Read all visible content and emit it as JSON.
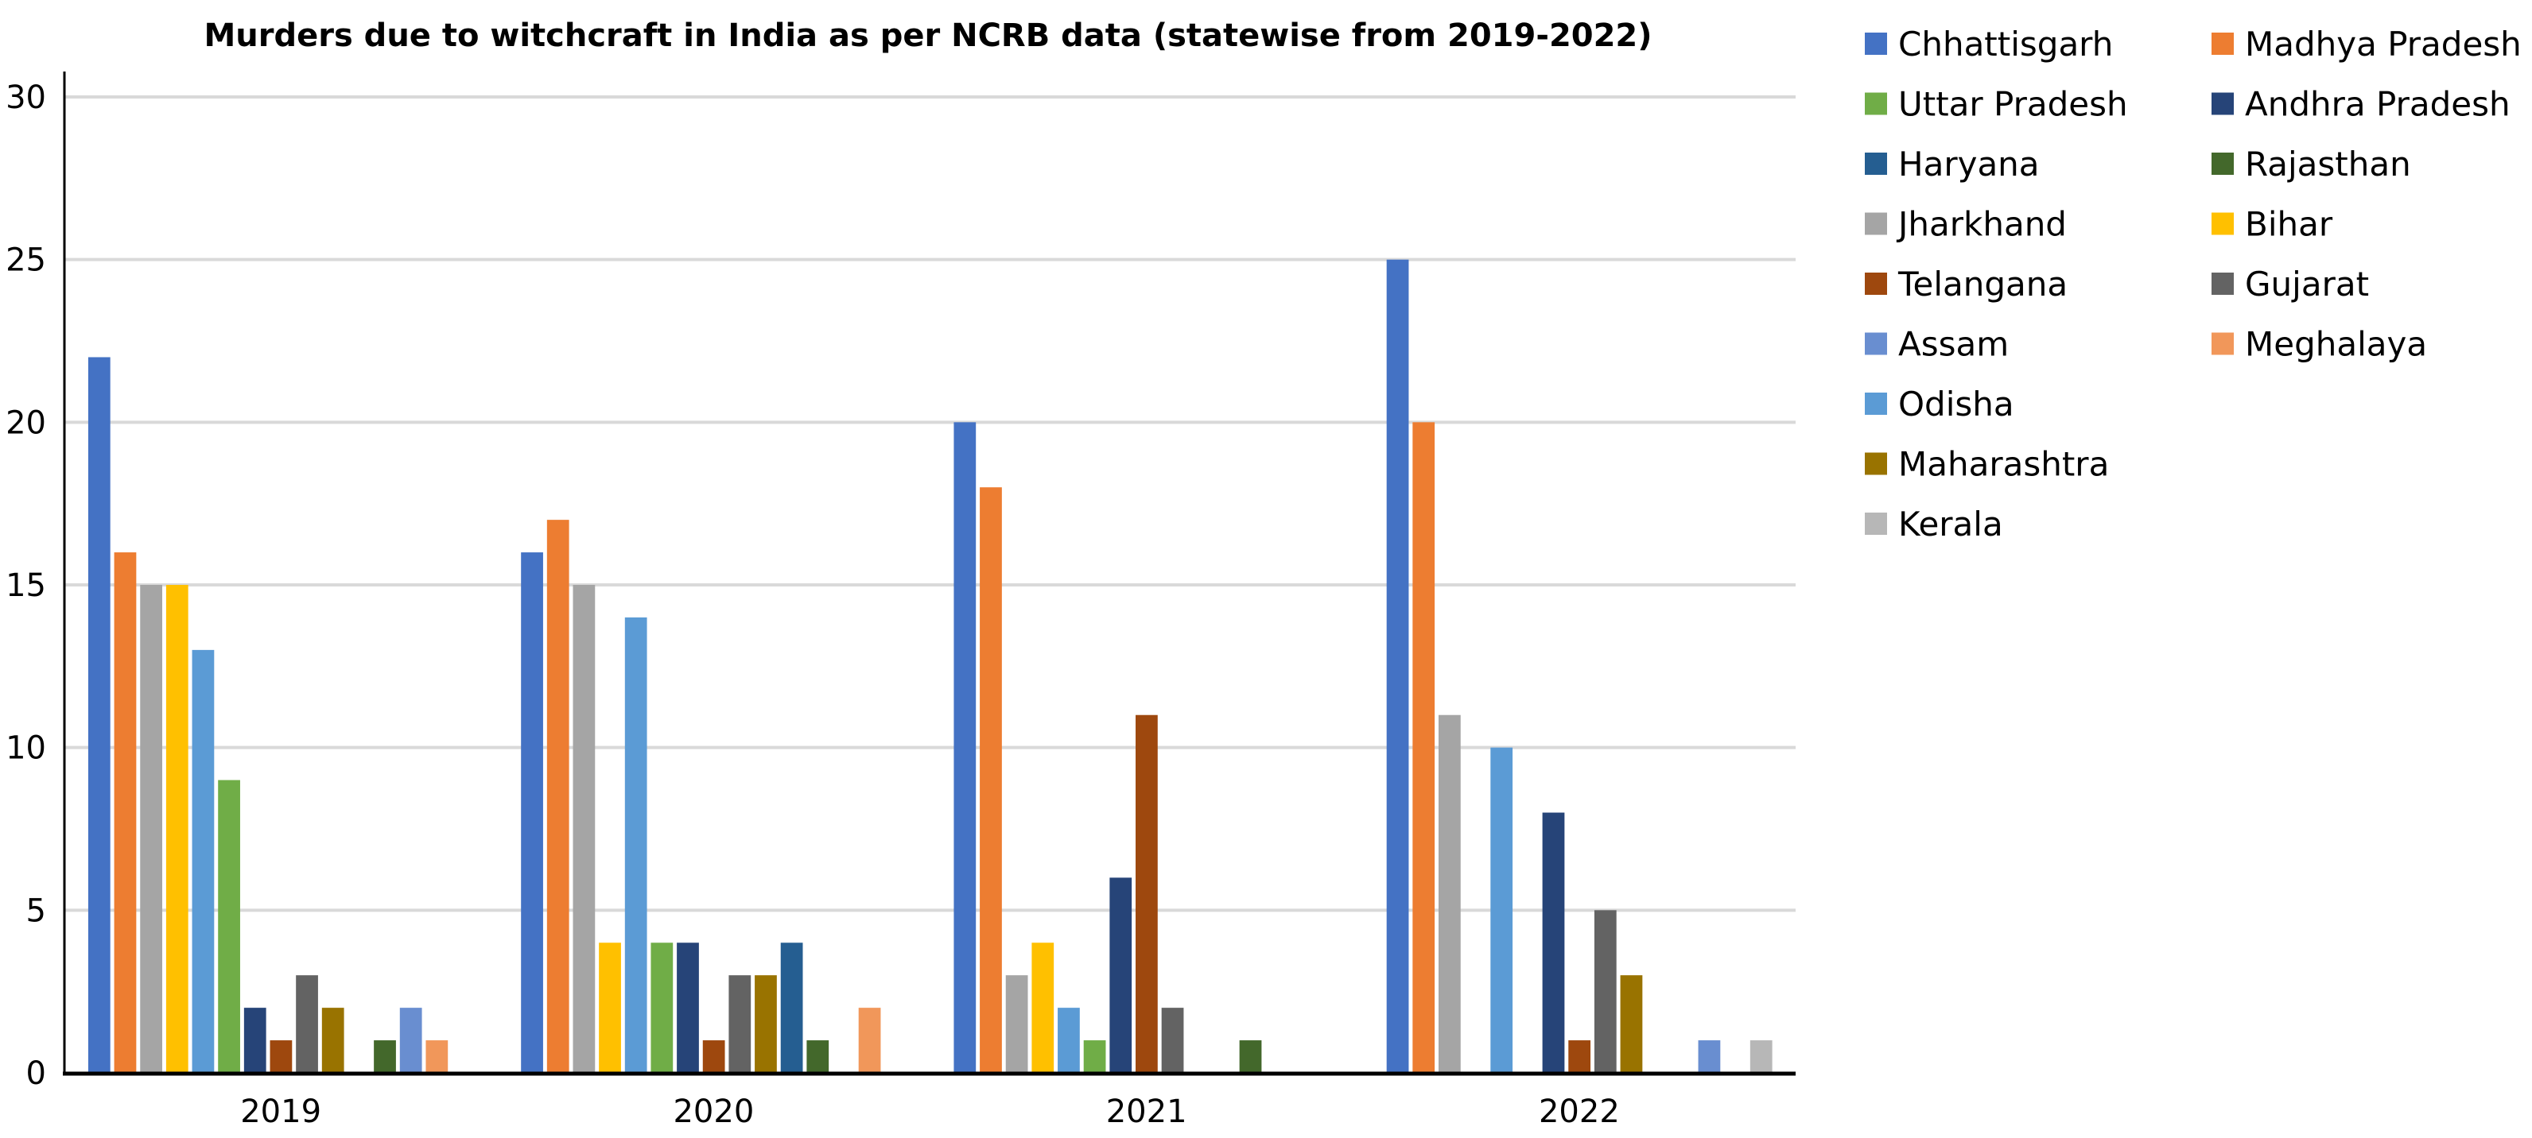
{
  "chart_data": {
    "type": "bar",
    "title": "Murders due to witchcraft in India as per NCRB data (statewise from 2019-2022)",
    "xlabel": "",
    "ylabel": "",
    "ylim": [
      0,
      30
    ],
    "yticks": [
      0,
      5,
      10,
      15,
      20,
      25,
      30
    ],
    "grid": true,
    "legend_placement": "right",
    "categories": [
      "2019",
      "2020",
      "2021",
      "2022"
    ],
    "series": [
      {
        "name": "Chhattisgarh",
        "color": "#4472C4",
        "values": [
          22,
          16,
          20,
          25
        ]
      },
      {
        "name": "Madhya Pradesh",
        "color": "#ED7D31",
        "values": [
          16,
          17,
          18,
          20
        ]
      },
      {
        "name": "Jharkhand",
        "color": "#A5A5A5",
        "values": [
          15,
          15,
          3,
          11
        ]
      },
      {
        "name": "Bihar",
        "color": "#FFC000",
        "values": [
          15,
          4,
          4,
          0
        ]
      },
      {
        "name": "Odisha",
        "color": "#5B9BD5",
        "values": [
          13,
          14,
          2,
          10
        ]
      },
      {
        "name": "Uttar Pradesh",
        "color": "#70AD47",
        "values": [
          9,
          4,
          1,
          0
        ]
      },
      {
        "name": "Andhra Pradesh",
        "color": "#264478",
        "values": [
          2,
          4,
          6,
          8
        ]
      },
      {
        "name": "Telangana",
        "color": "#9E480E",
        "values": [
          1,
          1,
          11,
          1
        ]
      },
      {
        "name": "Gujarat",
        "color": "#636363",
        "values": [
          3,
          3,
          2,
          5
        ]
      },
      {
        "name": "Maharashtra",
        "color": "#997300",
        "values": [
          2,
          3,
          0,
          3
        ]
      },
      {
        "name": "Haryana",
        "color": "#255E91",
        "values": [
          0,
          4,
          0,
          0
        ]
      },
      {
        "name": "Rajasthan",
        "color": "#43682B",
        "values": [
          1,
          1,
          1,
          0
        ]
      },
      {
        "name": "Assam",
        "color": "#698ED0",
        "values": [
          2,
          0,
          0,
          1
        ]
      },
      {
        "name": "Meghalaya",
        "color": "#F1975A",
        "values": [
          1,
          2,
          0,
          0
        ]
      },
      {
        "name": "Kerala",
        "color": "#B7B7B7",
        "values": [
          0,
          0,
          0,
          1
        ]
      }
    ],
    "legend_columns": [
      [
        "Chhattisgarh",
        "Uttar Pradesh",
        "Haryana",
        "Jharkhand",
        "Telangana",
        "Assam",
        "Odisha",
        "Maharashtra",
        "Kerala"
      ],
      [
        "Madhya Pradesh",
        "Andhra Pradesh",
        "Rajasthan",
        "Bihar",
        "Gujarat",
        "Meghalaya"
      ]
    ]
  }
}
